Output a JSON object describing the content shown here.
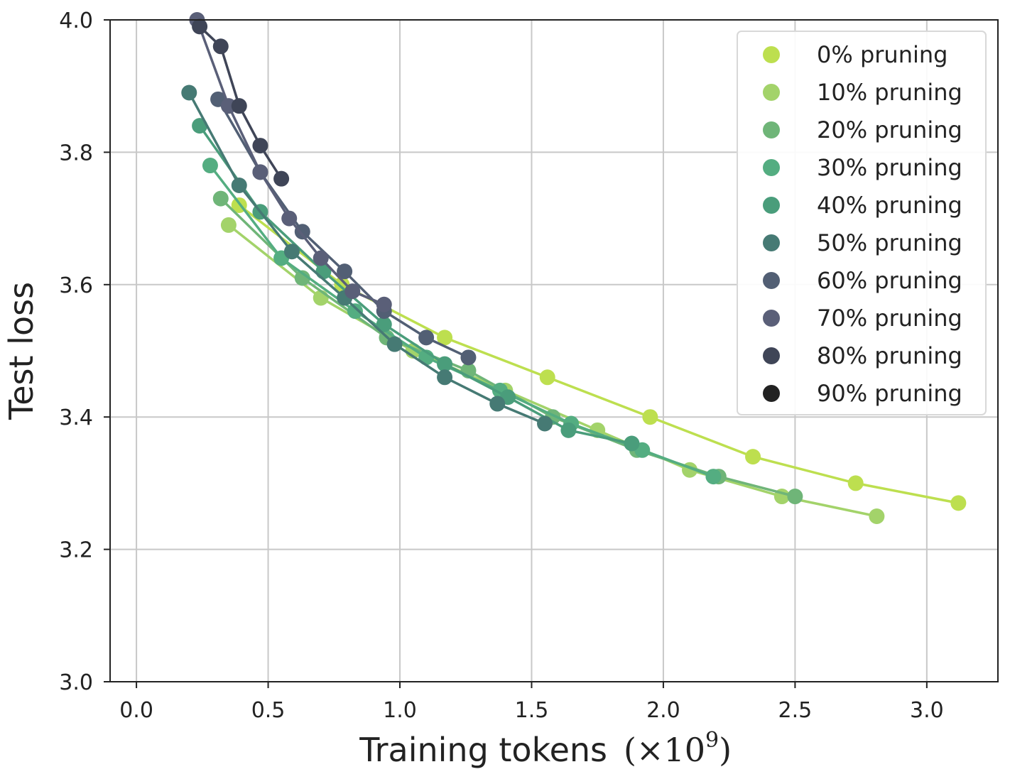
{
  "chart_data": {
    "type": "line",
    "title": "",
    "xlabel": "Training tokens",
    "xlabel_unit": "(×10",
    "xlabel_unit_exponent": "9",
    "xlabel_unit_close": ")",
    "ylabel": "Test loss",
    "xlim": [
      -0.1,
      3.27
    ],
    "ylim": [
      3.0,
      4.0
    ],
    "xticks": [
      "0.0",
      "0.5",
      "1.0",
      "1.5",
      "2.0",
      "2.5",
      "3.0"
    ],
    "yticks": [
      "3.0",
      "3.2",
      "3.4",
      "3.6",
      "3.8",
      "4.0"
    ],
    "grid": true,
    "legend_position": "top-right",
    "series": [
      {
        "name": "0% pruning",
        "color": "#bddf4f",
        "x": [
          0.39,
          0.78,
          1.17,
          1.56,
          1.95,
          2.34,
          2.73,
          3.12
        ],
        "y": [
          3.72,
          3.6,
          3.52,
          3.46,
          3.4,
          3.34,
          3.3,
          3.27
        ]
      },
      {
        "name": "10% pruning",
        "color": "#a3d36a",
        "x": [
          0.35,
          0.7,
          1.05,
          1.4,
          1.75,
          2.1,
          2.45,
          2.81
        ],
        "y": [
          3.69,
          3.58,
          3.5,
          3.44,
          3.38,
          3.32,
          3.28,
          3.25
        ]
      },
      {
        "name": "20% pruning",
        "color": "#6fb578",
        "x": [
          0.32,
          0.63,
          0.95,
          1.26,
          1.58,
          1.9,
          2.21,
          2.5
        ],
        "y": [
          3.73,
          3.61,
          3.52,
          3.47,
          3.4,
          3.35,
          3.31,
          3.28
        ]
      },
      {
        "name": "30% pruning",
        "color": "#54ad81",
        "x": [
          0.28,
          0.55,
          0.83,
          1.1,
          1.38,
          1.65,
          1.92,
          2.19
        ],
        "y": [
          3.78,
          3.64,
          3.56,
          3.49,
          3.44,
          3.39,
          3.35,
          3.31
        ]
      },
      {
        "name": "40% pruning",
        "color": "#4a9d7b",
        "x": [
          0.24,
          0.47,
          0.71,
          0.94,
          1.17,
          1.41,
          1.64,
          1.88
        ],
        "y": [
          3.84,
          3.71,
          3.62,
          3.54,
          3.48,
          3.43,
          3.38,
          3.36
        ]
      },
      {
        "name": "50% pruning",
        "color": "#467a74",
        "x": [
          0.2,
          0.39,
          0.59,
          0.79,
          0.98,
          1.17,
          1.37,
          1.55
        ],
        "y": [
          3.89,
          3.75,
          3.65,
          3.58,
          3.51,
          3.46,
          3.42,
          3.39
        ]
      },
      {
        "name": "60% pruning",
        "color": "#525f74",
        "x": [
          0.31,
          0.47,
          0.63,
          0.79,
          0.94,
          1.1,
          1.26
        ],
        "y": [
          3.88,
          3.77,
          3.68,
          3.62,
          3.56,
          3.52,
          3.49
        ]
      },
      {
        "name": "70% pruning",
        "color": "#5a5f78",
        "x": [
          0.23,
          0.35,
          0.47,
          0.58,
          0.7,
          0.82,
          0.94
        ],
        "y": [
          4.0,
          3.87,
          3.77,
          3.7,
          3.64,
          3.59,
          3.57
        ]
      },
      {
        "name": "80% pruning",
        "color": "#3f4557",
        "x": [
          0.24,
          0.32,
          0.39,
          0.47,
          0.55
        ],
        "y": [
          3.99,
          3.96,
          3.87,
          3.81,
          3.76
        ]
      },
      {
        "name": "90% pruning",
        "color": "#222222",
        "x": [],
        "y": []
      }
    ]
  }
}
